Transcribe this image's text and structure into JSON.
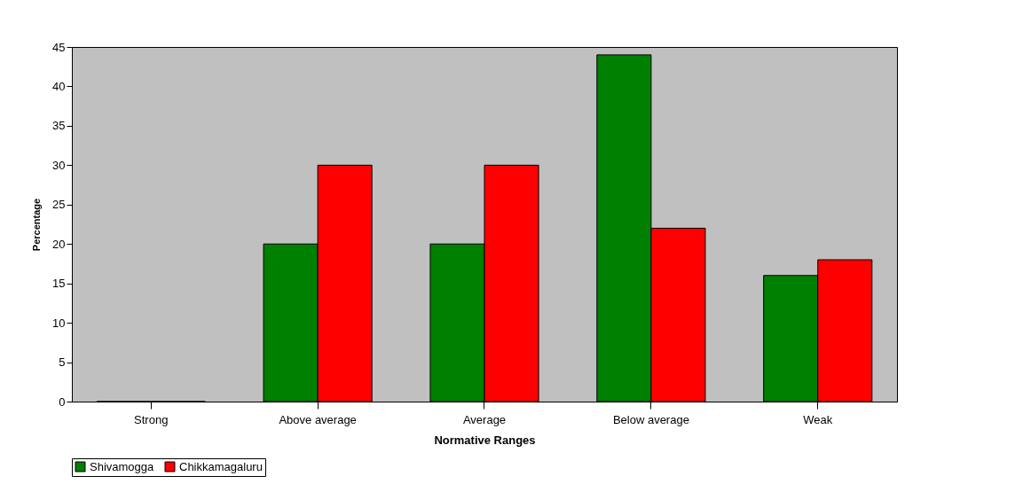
{
  "chart_data": {
    "type": "bar",
    "xlabel": "Normative Ranges",
    "ylabel": "Percentage",
    "categories": [
      "Strong",
      "Above average",
      "Average",
      "Below average",
      "Weak"
    ],
    "series": [
      {
        "name": "Shivamogga",
        "color": "#008000",
        "values": [
          0,
          20,
          20,
          44,
          16
        ]
      },
      {
        "name": "Chikkamagaluru",
        "color": "#ff0000",
        "values": [
          0,
          30,
          30,
          22,
          18
        ]
      }
    ],
    "ylim": [
      0,
      45
    ],
    "yticks": [
      0,
      5,
      10,
      15,
      20,
      25,
      30,
      35,
      40,
      45
    ],
    "grid": false,
    "legend": "bottom"
  }
}
